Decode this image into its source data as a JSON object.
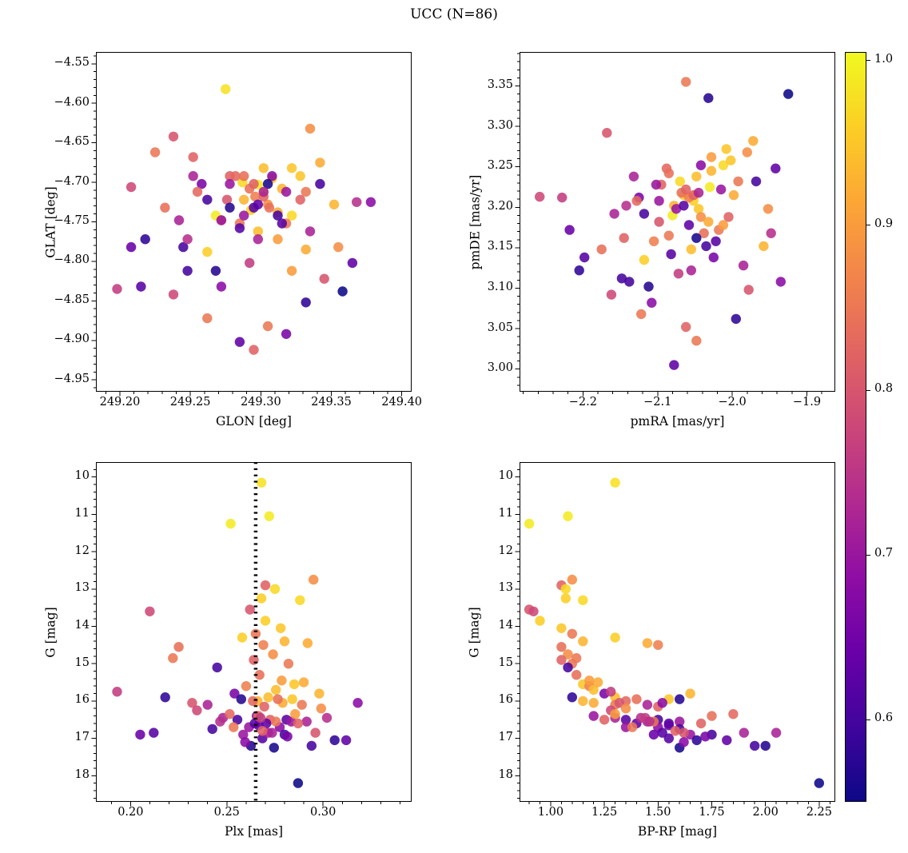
{
  "title": "UCC (N=86)",
  "colorbar": {
    "vmin": 0.55,
    "vmax": 1.005,
    "tick_values": [
      1.0,
      0.9,
      0.8,
      0.7,
      0.6
    ],
    "tick_labels": [
      "1.0",
      "0.9",
      "0.8",
      "0.7",
      "0.6"
    ],
    "stops": [
      "#0d0887",
      "#41049d",
      "#6a00a8",
      "#8f0da4",
      "#b12a90",
      "#cc4778",
      "#e16462",
      "#f2844b",
      "#fca636",
      "#fcce25",
      "#f0f921"
    ]
  },
  "panels": [
    {
      "id": "glon-glat",
      "xlabel": "GLON [deg]",
      "ylabel": "GLAT [deg]",
      "x_range": [
        249.183,
        249.407
      ],
      "y_range": [
        -4.535,
        -4.965
      ],
      "xticks": [
        249.2,
        249.25,
        249.3,
        249.35,
        249.4
      ],
      "xtick_labels": [
        "249.20",
        "249.25",
        "249.30",
        "249.35",
        "249.40"
      ],
      "yticks": [
        -4.55,
        -4.6,
        -4.65,
        -4.7,
        -4.75,
        -4.8,
        -4.85,
        -4.9,
        -4.95
      ],
      "ytick_labels": [
        "−4.55",
        "−4.60",
        "−4.65",
        "−4.70",
        "−4.75",
        "−4.80",
        "−4.85",
        "−4.90",
        "−4.95"
      ],
      "xcol": "glon",
      "ycol": "glat"
    },
    {
      "id": "pm",
      "xlabel": "pmRA [mas/yr]",
      "ylabel": "pmDE [mas/yr]",
      "x_range": [
        -2.285,
        -1.862
      ],
      "y_range": [
        3.392,
        2.972
      ],
      "xticks": [
        -2.2,
        -2.1,
        -2.0,
        -1.9
      ],
      "xtick_labels": [
        "−2.2",
        "−2.1",
        "−2.0",
        "−1.9"
      ],
      "yticks": [
        3.0,
        3.05,
        3.1,
        3.15,
        3.2,
        3.25,
        3.3,
        3.35
      ],
      "ytick_labels": [
        "3.00",
        "3.05",
        "3.10",
        "3.15",
        "3.20",
        "3.25",
        "3.30",
        "3.35"
      ],
      "xcol": "pmra",
      "ycol": "pmde"
    },
    {
      "id": "plx-g",
      "xlabel": "Plx [mas]",
      "ylabel": "G [mag]",
      "x_range": [
        0.182,
        0.346
      ],
      "y_range": [
        9.6,
        18.7
      ],
      "xticks": [
        0.2,
        0.25,
        0.3
      ],
      "xtick_labels": [
        "0.20",
        "0.25",
        "0.30"
      ],
      "yticks": [
        10,
        11,
        12,
        13,
        14,
        15,
        16,
        17,
        18
      ],
      "ytick_labels": [
        "10",
        "11",
        "12",
        "13",
        "14",
        "15",
        "16",
        "17",
        "18"
      ],
      "xcol": "plx",
      "ycol": "g",
      "vline": 0.265
    },
    {
      "id": "cmd",
      "xlabel": "BP-RP [mag]",
      "ylabel": "G [mag]",
      "x_range": [
        0.855,
        2.325
      ],
      "y_range": [
        9.6,
        18.7
      ],
      "xticks": [
        1.0,
        1.25,
        1.5,
        1.75,
        2.0,
        2.25
      ],
      "xtick_labels": [
        "1.00",
        "1.25",
        "1.50",
        "1.75",
        "2.00",
        "2.25"
      ],
      "yticks": [
        10,
        11,
        12,
        13,
        14,
        15,
        16,
        17,
        18
      ],
      "ytick_labels": [
        "10",
        "11",
        "12",
        "13",
        "14",
        "15",
        "16",
        "17",
        "18"
      ],
      "xcol": "bprp",
      "ycol": "g"
    }
  ],
  "chart_data": {
    "type": "scatter",
    "title": "UCC (N=86)",
    "n_stars": 86,
    "colormap": "plasma",
    "color_variable": "membership probability",
    "color_range": [
      0.55,
      1.0
    ],
    "columns": [
      "glon",
      "glat",
      "pmra",
      "pmde",
      "plx",
      "g",
      "bprp",
      "p"
    ],
    "rows": [
      [
        249.275,
        -4.582,
        -2.05,
        3.215,
        0.268,
        10.15,
        1.3,
        0.98
      ],
      [
        249.298,
        -4.703,
        -2.03,
        3.225,
        0.272,
        11.05,
        1.08,
        0.99
      ],
      [
        249.268,
        -4.742,
        -2.08,
        3.19,
        0.252,
        11.25,
        0.9,
        0.99
      ],
      [
        249.335,
        -4.632,
        -1.98,
        3.268,
        0.295,
        12.75,
        1.1,
        0.88
      ],
      [
        249.252,
        -4.668,
        -2.145,
        3.162,
        0.27,
        12.9,
        1.05,
        0.82
      ],
      [
        249.287,
        -4.7,
        -2.07,
        3.232,
        0.275,
        13.0,
        1.07,
        0.97
      ],
      [
        249.302,
        -4.713,
        -2.052,
        3.208,
        0.268,
        13.25,
        1.07,
        0.96
      ],
      [
        249.322,
        -4.742,
        -2.012,
        3.252,
        0.288,
        13.3,
        1.15,
        0.97
      ],
      [
        249.276,
        -4.722,
        -2.098,
        3.182,
        0.262,
        13.55,
        0.9,
        0.8
      ],
      [
        249.208,
        -4.706,
        -2.258,
        3.213,
        0.21,
        13.6,
        0.92,
        0.78
      ],
      [
        249.293,
        -4.735,
        -2.065,
        3.215,
        0.27,
        13.85,
        0.95,
        0.96
      ],
      [
        249.308,
        -4.695,
        -2.045,
        3.198,
        0.278,
        14.05,
        1.05,
        0.95
      ],
      [
        249.285,
        -4.752,
        -2.085,
        3.165,
        0.265,
        14.2,
        1.1,
        0.85
      ],
      [
        249.315,
        -4.708,
        -2.028,
        3.245,
        0.28,
        14.4,
        1.15,
        0.93
      ],
      [
        249.262,
        -4.788,
        -2.118,
        3.135,
        0.258,
        14.3,
        1.3,
        0.96
      ],
      [
        249.342,
        -4.675,
        -1.972,
        3.282,
        0.292,
        14.45,
        1.45,
        0.92
      ],
      [
        249.296,
        -4.718,
        -2.058,
        3.212,
        0.269,
        14.5,
        1.5,
        0.86
      ],
      [
        249.232,
        -4.732,
        -2.175,
        3.148,
        0.225,
        14.55,
        1.05,
        0.84
      ],
      [
        249.305,
        -4.728,
        -2.042,
        3.188,
        0.274,
        14.75,
        1.08,
        0.88
      ],
      [
        249.278,
        -4.692,
        -2.095,
        3.228,
        0.264,
        14.9,
        1.05,
        0.82
      ],
      [
        249.318,
        -4.752,
        -2.018,
        3.172,
        0.282,
        15.0,
        1.1,
        0.85
      ],
      [
        249.248,
        -4.812,
        -2.138,
        3.108,
        0.245,
        15.1,
        1.08,
        0.6
      ],
      [
        249.292,
        -4.708,
        -2.068,
        3.218,
        0.267,
        15.3,
        1.12,
        0.84
      ],
      [
        249.328,
        -4.692,
        -2.002,
        3.258,
        0.285,
        15.55,
        1.15,
        0.95
      ],
      [
        249.272,
        -4.748,
        -2.105,
        3.158,
        0.26,
        15.6,
        1.18,
        0.86
      ],
      [
        249.302,
        -4.682,
        -2.048,
        3.238,
        0.2755,
        15.7,
        1.2,
        0.94
      ],
      [
        249.218,
        -4.772,
        -2.205,
        3.122,
        0.218,
        15.9,
        1.1,
        0.58
      ],
      [
        249.288,
        -4.722,
        -2.078,
        3.202,
        0.266,
        16.0,
        1.15,
        0.93
      ],
      [
        249.312,
        -4.738,
        -2.032,
        3.182,
        0.279,
        16.05,
        1.2,
        0.92
      ],
      [
        249.258,
        -4.702,
        -2.125,
        3.212,
        0.254,
        15.8,
        1.25,
        0.66
      ],
      [
        249.298,
        -4.762,
        -2.055,
        3.148,
        0.2715,
        15.9,
        1.3,
        0.94
      ],
      [
        249.332,
        -4.712,
        -1.992,
        3.232,
        0.289,
        16.1,
        1.3,
        0.85
      ],
      [
        249.282,
        -4.692,
        -2.088,
        3.248,
        0.2635,
        16.0,
        1.35,
        0.83
      ],
      [
        249.306,
        -4.732,
        -2.038,
        3.168,
        0.2765,
        15.95,
        1.4,
        0.84
      ],
      [
        249.242,
        -4.748,
        -2.158,
        3.192,
        0.24,
        16.1,
        1.45,
        0.72
      ],
      [
        249.295,
        -4.702,
        -2.062,
        3.222,
        0.2695,
        16.15,
        1.5,
        0.82
      ],
      [
        249.322,
        -4.682,
        -2.008,
        3.272,
        0.284,
        15.95,
        1.55,
        0.95
      ],
      [
        249.268,
        -4.812,
        -2.112,
        3.102,
        0.2575,
        15.95,
        1.6,
        0.57
      ],
      [
        249.352,
        -4.728,
        -1.958,
        3.152,
        0.298,
        15.8,
        1.65,
        0.93
      ],
      [
        249.288,
        -4.742,
        -2.075,
        3.198,
        0.2655,
        16.4,
        1.2,
        0.7
      ],
      [
        249.302,
        -4.718,
        -2.052,
        3.215,
        0.2725,
        16.5,
        1.25,
        0.82
      ],
      [
        249.252,
        -4.692,
        -2.132,
        3.238,
        0.248,
        16.45,
        1.3,
        0.72
      ],
      [
        249.315,
        -4.752,
        -2.022,
        3.158,
        0.281,
        16.5,
        1.35,
        0.62
      ],
      [
        249.278,
        -4.702,
        -2.098,
        3.208,
        0.2615,
        16.7,
        1.35,
        0.7
      ],
      [
        249.298,
        -4.728,
        -2.058,
        3.178,
        0.2705,
        16.6,
        1.4,
        0.63
      ],
      [
        249.335,
        -4.762,
        -1.985,
        3.128,
        0.2915,
        16.55,
        1.45,
        0.72
      ],
      [
        249.262,
        -4.722,
        -2.118,
        3.192,
        0.2555,
        16.5,
        1.5,
        0.6
      ],
      [
        249.308,
        -4.692,
        -2.042,
        3.252,
        0.2775,
        16.7,
        1.5,
        0.68
      ],
      [
        249.285,
        -4.758,
        -2.082,
        3.142,
        0.2645,
        16.6,
        1.55,
        0.62
      ],
      [
        249.318,
        -4.712,
        -2.015,
        3.222,
        0.2835,
        16.55,
        1.6,
        0.7
      ],
      [
        249.245,
        -4.782,
        -2.148,
        3.112,
        0.2425,
        16.75,
        1.6,
        0.6
      ],
      [
        249.295,
        -4.732,
        -2.065,
        3.202,
        0.2685,
        17.0,
        1.55,
        0.62
      ],
      [
        249.305,
        -4.702,
        -2.048,
        3.162,
        0.2745,
        17.25,
        1.6,
        0.56
      ],
      [
        249.272,
        -4.748,
        -2.102,
        3.228,
        0.2585,
        16.9,
        1.65,
        0.7
      ],
      [
        249.328,
        -4.722,
        -2.005,
        3.188,
        0.287,
        16.6,
        1.7,
        0.82
      ],
      [
        249.288,
        -4.692,
        -2.085,
        3.242,
        0.2665,
        16.4,
        1.75,
        0.84
      ],
      [
        249.312,
        -4.742,
        -2.035,
        3.152,
        0.28,
        16.9,
        1.75,
        0.6
      ],
      [
        249.255,
        -4.712,
        -2.128,
        3.208,
        0.2515,
        16.35,
        1.85,
        0.83
      ],
      [
        249.298,
        -4.772,
        -2.055,
        3.122,
        0.2715,
        16.85,
        1.9,
        0.72
      ],
      [
        249.342,
        -4.702,
        -1.968,
        3.232,
        0.294,
        17.2,
        1.95,
        0.6
      ],
      [
        249.278,
        -4.732,
        -2.032,
        3.335,
        0.2625,
        17.2,
        2.0,
        0.57
      ],
      [
        249.302,
        -4.712,
        -2.045,
        3.218,
        0.2735,
        16.85,
        2.05,
        0.72
      ],
      [
        249.358,
        -4.838,
        -1.925,
        3.34,
        0.287,
        18.2,
        2.25,
        0.55
      ],
      [
        249.198,
        -4.835,
        -2.228,
        3.212,
        0.193,
        15.75,
        1.28,
        0.76
      ],
      [
        249.215,
        -4.832,
        -2.198,
        3.138,
        0.212,
        16.85,
        1.52,
        0.62
      ],
      [
        249.225,
        -4.662,
        -2.062,
        3.355,
        0.222,
        14.85,
        1.12,
        0.85
      ],
      [
        249.238,
        -4.642,
        -2.168,
        3.292,
        0.232,
        16.05,
        1.32,
        0.8
      ],
      [
        249.368,
        -4.725,
        -1.948,
        3.168,
        0.302,
        16.45,
        1.42,
        0.74
      ],
      [
        249.378,
        -4.725,
        -1.935,
        3.108,
        0.318,
        16.05,
        1.52,
        0.68
      ],
      [
        249.345,
        -4.822,
        -1.978,
        3.098,
        0.296,
        16.85,
        1.62,
        0.8
      ],
      [
        249.332,
        -4.852,
        -1.995,
        3.062,
        0.306,
        17.05,
        1.68,
        0.58
      ],
      [
        249.305,
        -4.882,
        -2.048,
        3.035,
        0.2755,
        16.55,
        1.48,
        0.85
      ],
      [
        249.285,
        -4.902,
        -2.078,
        3.005,
        0.2665,
        16.65,
        1.55,
        0.63
      ],
      [
        249.262,
        -4.872,
        -2.122,
        3.068,
        0.2535,
        16.7,
        1.38,
        0.85
      ],
      [
        249.238,
        -4.842,
        -2.162,
        3.092,
        0.2345,
        16.25,
        1.28,
        0.78
      ],
      [
        249.295,
        -4.912,
        -2.062,
        3.052,
        0.2685,
        16.8,
        1.58,
        0.82
      ],
      [
        249.318,
        -4.892,
        -2.025,
        3.138,
        0.2815,
        16.95,
        1.72,
        0.66
      ],
      [
        249.208,
        -4.782,
        -2.218,
        3.172,
        0.205,
        16.9,
        1.48,
        0.64
      ],
      [
        249.355,
        -4.782,
        -1.952,
        3.198,
        0.299,
        16.2,
        1.35,
        0.88
      ],
      [
        249.365,
        -4.802,
        -1.942,
        3.248,
        0.312,
        17.05,
        1.82,
        0.63
      ],
      [
        249.322,
        -4.812,
        -2.012,
        3.178,
        0.2855,
        16.35,
        1.3,
        0.9
      ],
      [
        249.292,
        -4.802,
        -2.072,
        3.118,
        0.2675,
        16.45,
        1.44,
        0.76
      ],
      [
        249.272,
        -4.832,
        -2.108,
        3.082,
        0.2595,
        17.1,
        1.62,
        0.68
      ],
      [
        249.332,
        -4.785,
        -1.998,
        3.215,
        0.29,
        15.5,
        1.22,
        0.92
      ],
      [
        249.248,
        -4.772,
        -2.142,
        3.202,
        0.2465,
        16.55,
        1.46,
        0.74
      ],
      [
        249.312,
        -4.772,
        -2.028,
        3.262,
        0.2785,
        15.45,
        1.18,
        0.9
      ]
    ]
  }
}
